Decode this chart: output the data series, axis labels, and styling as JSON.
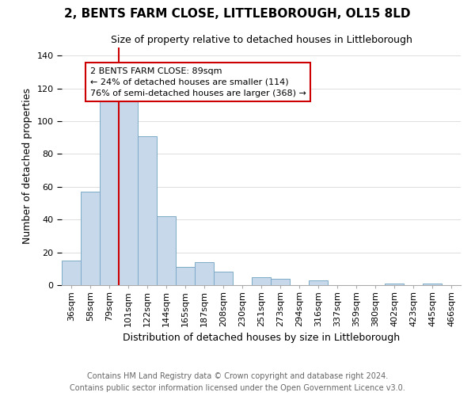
{
  "title": "2, BENTS FARM CLOSE, LITTLEBOROUGH, OL15 8LD",
  "subtitle": "Size of property relative to detached houses in Littleborough",
  "xlabel": "Distribution of detached houses by size in Littleborough",
  "ylabel": "Number of detached properties",
  "bar_color": "#c8d8eb",
  "bar_edge_color": "#7baac8",
  "categories": [
    "36sqm",
    "58sqm",
    "79sqm",
    "101sqm",
    "122sqm",
    "144sqm",
    "165sqm",
    "187sqm",
    "208sqm",
    "230sqm",
    "251sqm",
    "273sqm",
    "294sqm",
    "316sqm",
    "337sqm",
    "359sqm",
    "380sqm",
    "402sqm",
    "423sqm",
    "445sqm",
    "466sqm"
  ],
  "values": [
    15,
    57,
    114,
    117,
    91,
    42,
    11,
    14,
    8,
    0,
    5,
    4,
    0,
    3,
    0,
    0,
    0,
    1,
    0,
    1,
    0
  ],
  "ylim": [
    0,
    145
  ],
  "yticks": [
    0,
    20,
    40,
    60,
    80,
    100,
    120,
    140
  ],
  "vline_pos": 2.5,
  "vline_color": "#cc0000",
  "annotation_text": "2 BENTS FARM CLOSE: 89sqm\n← 24% of detached houses are smaller (114)\n76% of semi-detached houses are larger (368) →",
  "annotation_box_color": "#ffffff",
  "annotation_box_edge": "#cc0000",
  "footer_line1": "Contains HM Land Registry data © Crown copyright and database right 2024.",
  "footer_line2": "Contains public sector information licensed under the Open Government Licence v3.0.",
  "background_color": "#ffffff",
  "grid_color": "#dddddd",
  "title_fontsize": 11,
  "subtitle_fontsize": 9,
  "xlabel_fontsize": 9,
  "ylabel_fontsize": 9,
  "tick_fontsize": 8,
  "annotation_fontsize": 8,
  "footer_fontsize": 7
}
